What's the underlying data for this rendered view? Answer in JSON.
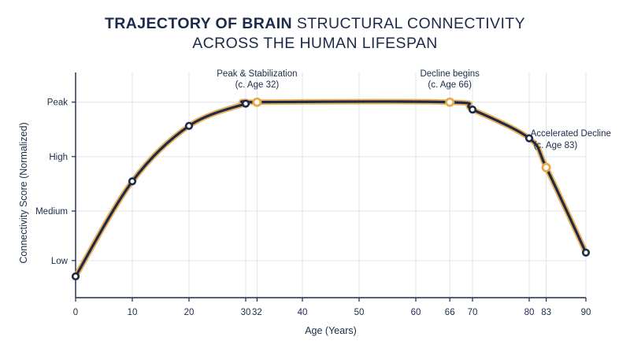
{
  "title": {
    "line1_bold": "TRAJECTORY OF BRAIN",
    "line1_rest": "STRUCTURAL CONNECTIVITY",
    "line2": "ACROSS THE HUMAN LIFESPAN"
  },
  "colors": {
    "line": "#1c2b4a",
    "highlight": "#e8a94a",
    "grid": "#dfe3ea",
    "axis": "#1c2b4a",
    "marker_fill": "#ffffff"
  },
  "chart_data": {
    "type": "line",
    "title": "TRAJECTORY OF BRAIN STRUCTURAL CONNECTIVITY ACROSS THE HUMAN LIFESPAN",
    "xlabel": "Age (Years)",
    "ylabel": "Connectivity Score (Normalized)",
    "xlim": [
      0,
      90
    ],
    "x_ticks": [
      0,
      10,
      20,
      30,
      32,
      40,
      50,
      60,
      66,
      70,
      80,
      83,
      90
    ],
    "y_ticks": [
      {
        "value": 3.2,
        "label": "Peak"
      },
      {
        "value": 2.1,
        "label": "High"
      },
      {
        "value": 1.0,
        "label": "Medium"
      },
      {
        "value": 0.0,
        "label": "Low"
      }
    ],
    "ylim": [
      -0.75,
      3.8
    ],
    "grid": true,
    "series": [
      {
        "x": [
          0,
          10,
          20,
          30,
          32,
          66,
          70,
          80,
          83,
          90
        ],
        "y": [
          -0.32,
          1.6,
          2.72,
          3.17,
          3.2,
          3.2,
          3.05,
          2.47,
          1.88,
          0.16
        ]
      }
    ],
    "highlight_points": [
      32,
      66,
      83
    ],
    "annotations": [
      {
        "x": 32,
        "lines": [
          "Peak & Stabilization",
          "(c. Age 32)"
        ]
      },
      {
        "x": 66,
        "lines": [
          "Decline begins",
          "(c. Age 66)"
        ]
      },
      {
        "x": 83,
        "lines": [
          "Accelerated Decline",
          "(c. Age 83)"
        ]
      }
    ]
  }
}
